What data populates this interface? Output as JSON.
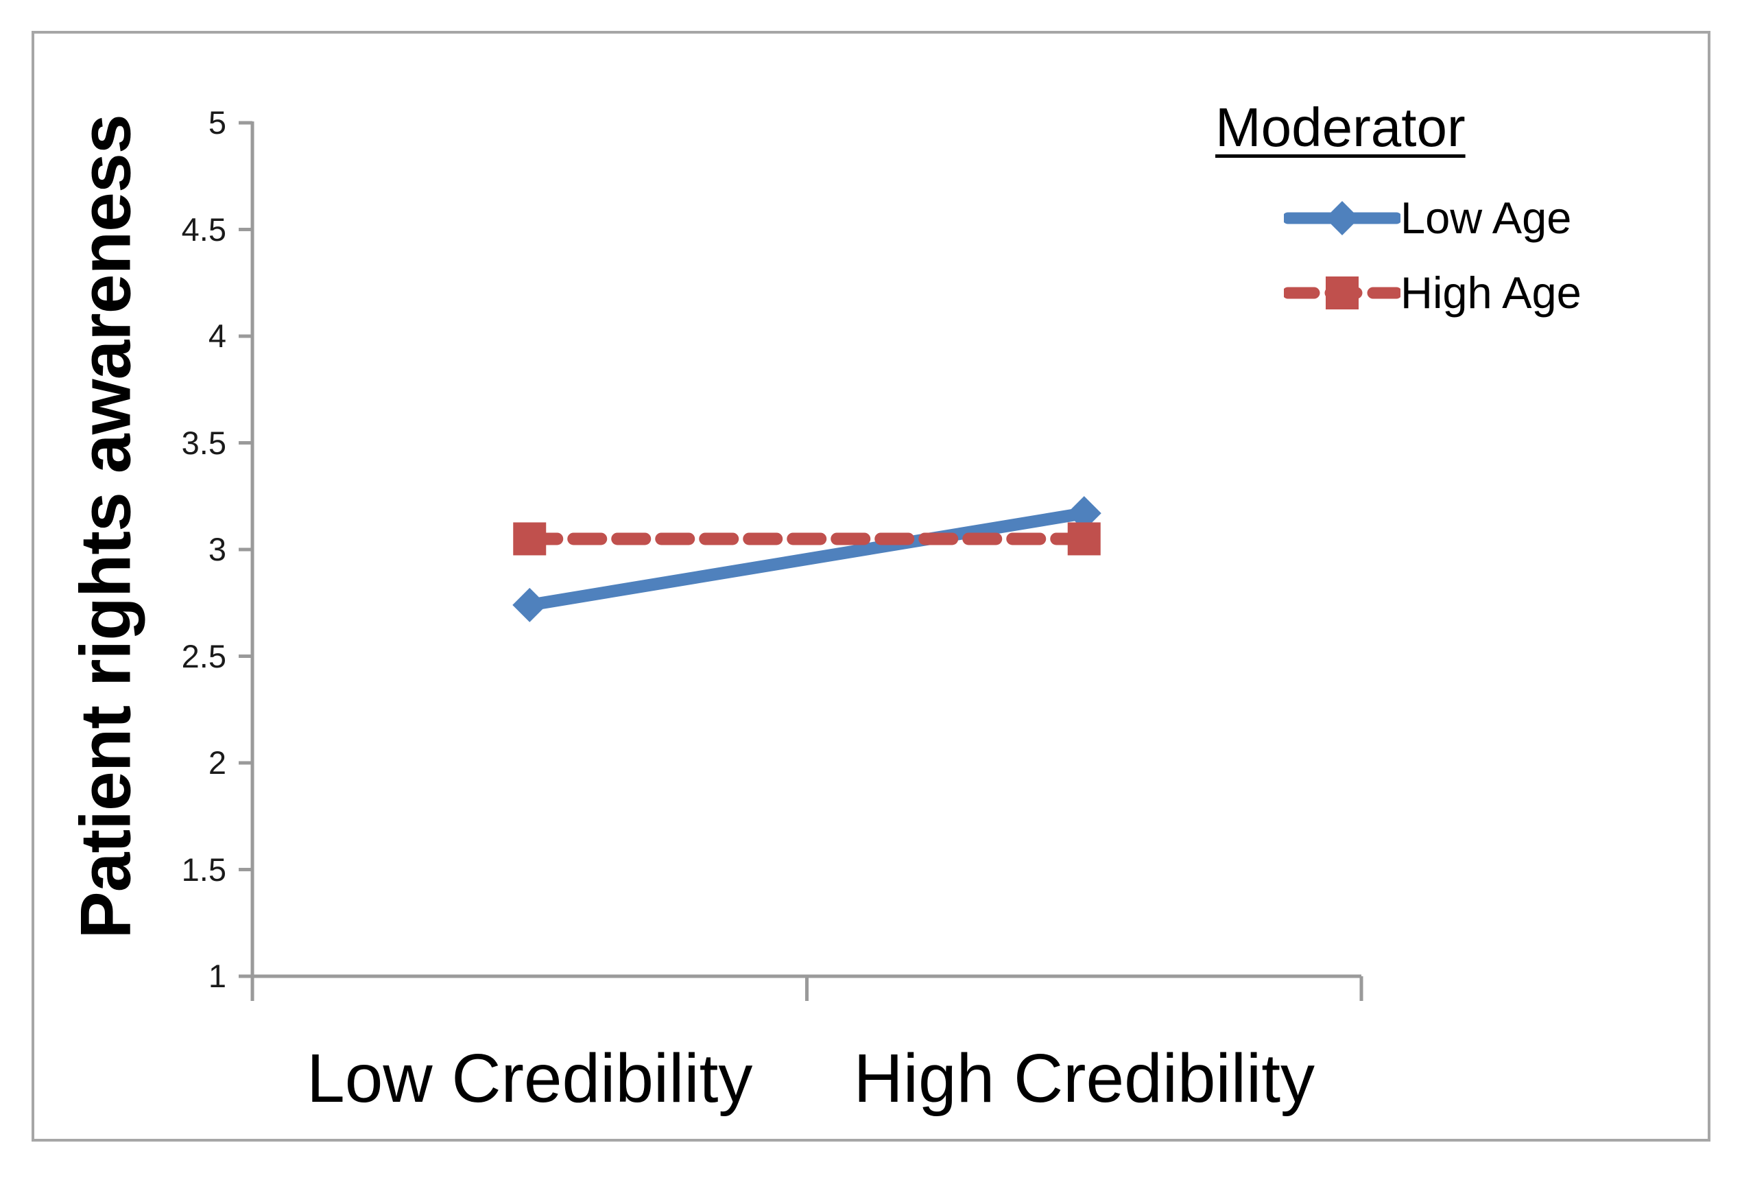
{
  "figure": {
    "background": "#ffffff",
    "border_color": "#a6a6a6",
    "axis_color": "#9a9a9a",
    "text_color": "#000000"
  },
  "chart_data": {
    "type": "line",
    "title": "",
    "xlabel": "",
    "ylabel": "Patient rights awareness",
    "categories": [
      "Low Credibility",
      "High Credibility"
    ],
    "series": [
      {
        "name": "Low Age",
        "values": [
          2.74,
          3.17
        ],
        "color": "#4F81BD",
        "marker": "diamond",
        "line_style": "solid"
      },
      {
        "name": "High Age",
        "values": [
          3.05,
          3.05
        ],
        "color": "#C0504D",
        "marker": "square",
        "line_style": "dashed"
      }
    ],
    "ylim": [
      1,
      5
    ],
    "yticks": [
      5,
      4.5,
      4,
      3.5,
      3,
      2.5,
      2,
      1.5,
      1
    ],
    "ytick_labels": [
      "5",
      "4.5",
      "4",
      "3.5",
      "3",
      "2.5",
      "2",
      "1.5",
      "1"
    ],
    "grid": "off",
    "legend": {
      "title": "Moderator",
      "position": "top-right",
      "entries": [
        "Low Age",
        "High Age"
      ]
    }
  }
}
